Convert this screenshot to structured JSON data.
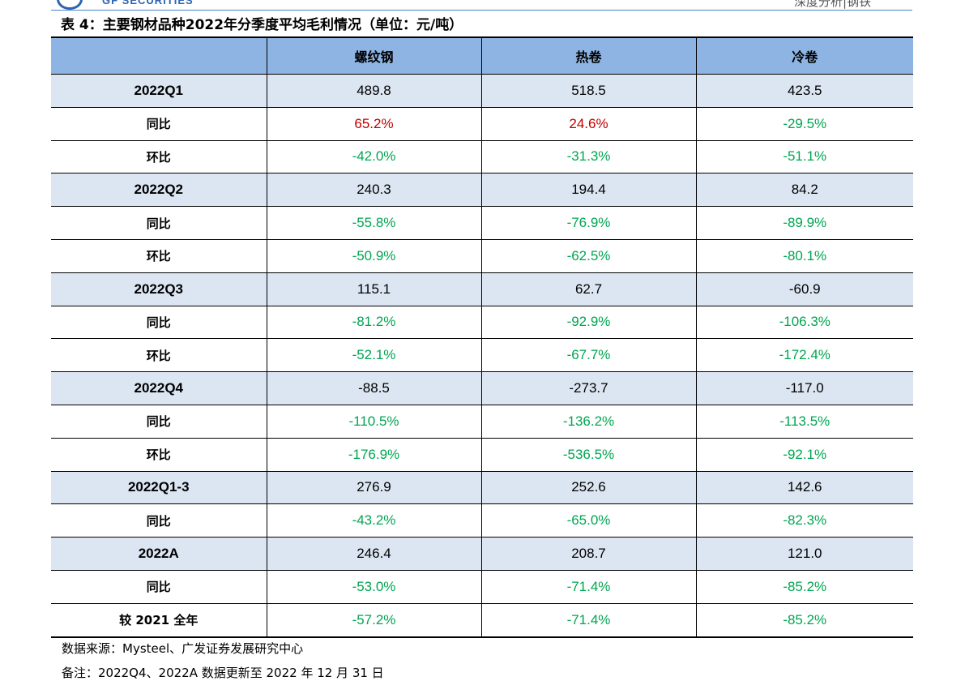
{
  "header": {
    "brand": "GF SECURITIES",
    "right_text": "深度分析|钢铁"
  },
  "title": "表 4：主要钢材品种2022年分季度平均毛利情况（单位：元/吨）",
  "table": {
    "columns": [
      "",
      "螺纹钢",
      "热卷",
      "冷卷"
    ],
    "rows": [
      {
        "label": "2022Q1",
        "type": "period",
        "values": [
          "489.8",
          "518.5",
          "423.5"
        ],
        "colors": [
          "",
          "",
          ""
        ]
      },
      {
        "label": "同比",
        "type": "sub",
        "values": [
          "65.2%",
          "24.6%",
          "-29.5%"
        ],
        "colors": [
          "pos",
          "pos",
          "neg"
        ]
      },
      {
        "label": "环比",
        "type": "sub",
        "values": [
          "-42.0%",
          "-31.3%",
          "-51.1%"
        ],
        "colors": [
          "neg",
          "neg",
          "neg"
        ]
      },
      {
        "label": "2022Q2",
        "type": "period",
        "values": [
          "240.3",
          "194.4",
          "84.2"
        ],
        "colors": [
          "",
          "",
          ""
        ]
      },
      {
        "label": "同比",
        "type": "sub",
        "values": [
          "-55.8%",
          "-76.9%",
          "-89.9%"
        ],
        "colors": [
          "neg",
          "neg",
          "neg"
        ]
      },
      {
        "label": "环比",
        "type": "sub",
        "values": [
          "-50.9%",
          "-62.5%",
          "-80.1%"
        ],
        "colors": [
          "neg",
          "neg",
          "neg"
        ]
      },
      {
        "label": "2022Q3",
        "type": "period",
        "values": [
          "115.1",
          "62.7",
          "-60.9"
        ],
        "colors": [
          "",
          "",
          ""
        ]
      },
      {
        "label": "同比",
        "type": "sub",
        "values": [
          "-81.2%",
          "-92.9%",
          "-106.3%"
        ],
        "colors": [
          "neg",
          "neg",
          "neg"
        ]
      },
      {
        "label": "环比",
        "type": "sub",
        "values": [
          "-52.1%",
          "-67.7%",
          "-172.4%"
        ],
        "colors": [
          "neg",
          "neg",
          "neg"
        ]
      },
      {
        "label": "2022Q4",
        "type": "period",
        "values": [
          "-88.5",
          "-273.7",
          "-117.0"
        ],
        "colors": [
          "",
          "",
          ""
        ]
      },
      {
        "label": "同比",
        "type": "sub",
        "values": [
          "-110.5%",
          "-136.2%",
          "-113.5%"
        ],
        "colors": [
          "neg",
          "neg",
          "neg"
        ]
      },
      {
        "label": "环比",
        "type": "sub",
        "values": [
          "-176.9%",
          "-536.5%",
          "-92.1%"
        ],
        "colors": [
          "neg",
          "neg",
          "neg"
        ]
      },
      {
        "label": "2022Q1-3",
        "type": "period",
        "values": [
          "276.9",
          "252.6",
          "142.6"
        ],
        "colors": [
          "",
          "",
          ""
        ]
      },
      {
        "label": "同比",
        "type": "sub",
        "values": [
          "-43.2%",
          "-65.0%",
          "-82.3%"
        ],
        "colors": [
          "neg",
          "neg",
          "neg"
        ]
      },
      {
        "label": "2022A",
        "type": "period",
        "values": [
          "246.4",
          "208.7",
          "121.0"
        ],
        "colors": [
          "",
          "",
          ""
        ]
      },
      {
        "label": "同比",
        "type": "sub",
        "values": [
          "-53.0%",
          "-71.4%",
          "-85.2%"
        ],
        "colors": [
          "neg",
          "neg",
          "neg"
        ]
      },
      {
        "label": "较 2021 全年",
        "type": "sub",
        "values": [
          "-57.2%",
          "-71.4%",
          "-85.2%"
        ],
        "colors": [
          "neg",
          "neg",
          "neg"
        ]
      }
    ]
  },
  "source": "数据来源：Mysteel、广发证券发展研究中心",
  "note": "备注：2022Q4、2022A 数据更新至 2022 年 12 月 31 日",
  "colors": {
    "header_bg": "#8eb4e3",
    "period_row_bg": "#dce6f2",
    "positive": "#c00000",
    "negative": "#00a651",
    "brand_blue": "#2e64b0"
  }
}
